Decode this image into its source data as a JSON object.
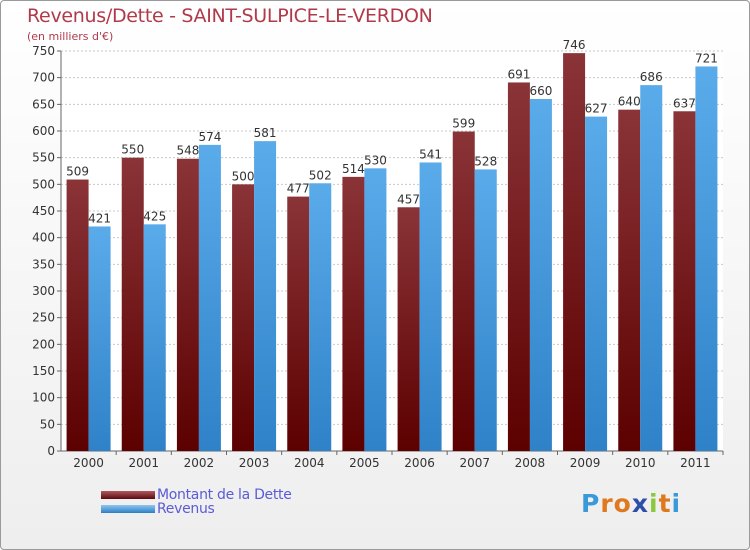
{
  "header": {
    "title": "Revenus/Dette - SAINT-SULPICE-LE-VERDON",
    "subtitle": "(en milliers d'€)"
  },
  "chart_data": {
    "type": "bar",
    "title": "Revenus/Dette - SAINT-SULPICE-LE-VERDON",
    "subtitle": "(en milliers d'€)",
    "categories": [
      "2000",
      "2001",
      "2002",
      "2003",
      "2004",
      "2005",
      "2006",
      "2007",
      "2008",
      "2009",
      "2010",
      "2011"
    ],
    "series": [
      {
        "name": "Montant de la Dette",
        "color": "#7a1a1f",
        "values": [
          509,
          550,
          548,
          500,
          477,
          514,
          457,
          599,
          691,
          746,
          640,
          637
        ]
      },
      {
        "name": "Revenus",
        "color": "#4a9fe0",
        "values": [
          421,
          425,
          574,
          581,
          502,
          530,
          541,
          528,
          660,
          627,
          686,
          721
        ]
      }
    ],
    "ylim": [
      0,
      750
    ],
    "yticks": [
      0,
      50,
      100,
      150,
      200,
      250,
      300,
      350,
      400,
      450,
      500,
      550,
      600,
      650,
      700,
      750
    ],
    "grid": true,
    "legend_position": "bottom-left"
  },
  "legend": {
    "items": [
      {
        "label": "Montant de la Dette",
        "color": "#7a1a1f"
      },
      {
        "label": "Revenus",
        "color": "#4a9fe0"
      }
    ]
  },
  "logo": {
    "text": "Proxiti",
    "letters": [
      {
        "char": "P",
        "color": "#3a9ad9"
      },
      {
        "char": "r",
        "color": "#e0781e"
      },
      {
        "char": "o",
        "color": "#e0781e"
      },
      {
        "char": "x",
        "color": "#2c4fa8"
      },
      {
        "char": "i",
        "color": "#8cc83c"
      },
      {
        "char": "t",
        "color": "#e0781e"
      },
      {
        "char": "i",
        "color": "#3a9ad9"
      }
    ]
  }
}
